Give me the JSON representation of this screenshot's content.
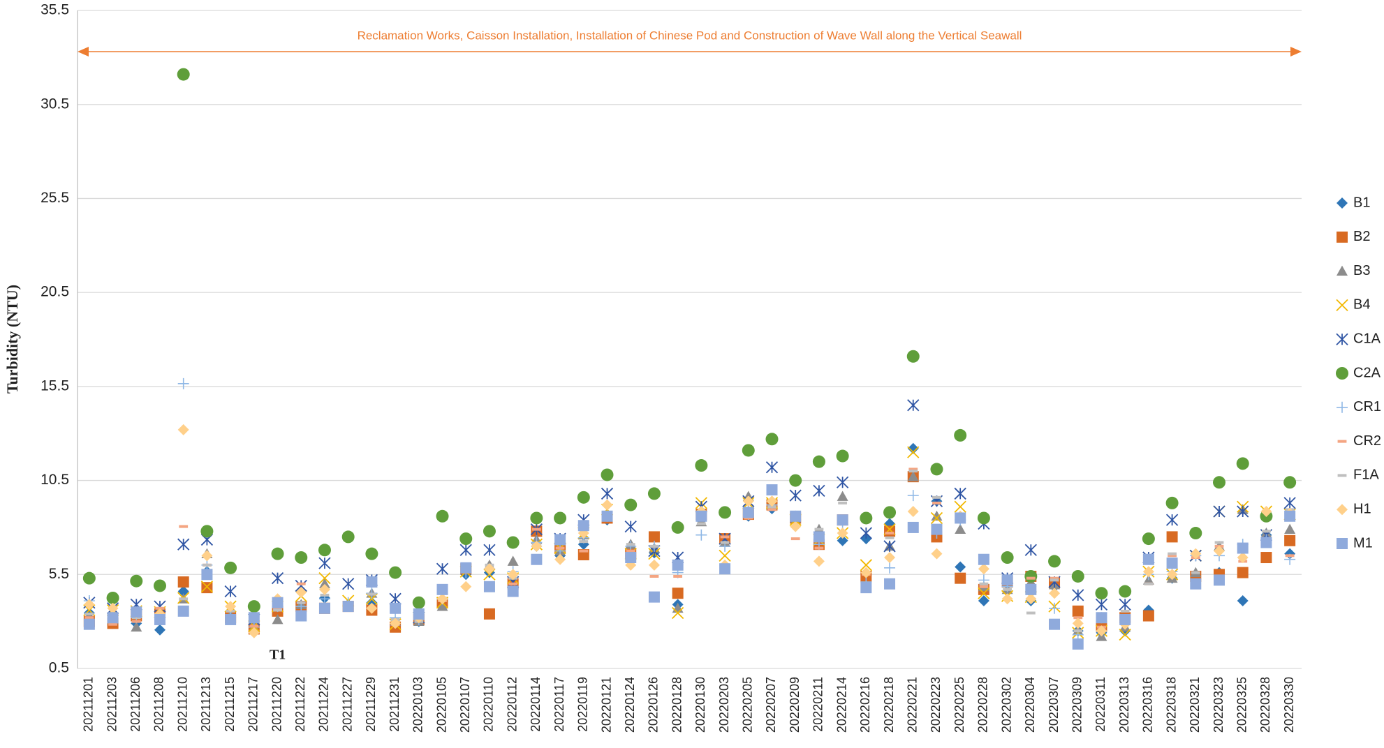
{
  "chart_data": {
    "type": "scatter",
    "annotation": "Reclamation Works, Caisson Installation, Installation of Chinese Pod and Construction of Wave Wall along the Vertical Seawall",
    "annotation_color": "#ed7d31",
    "marker_label": "T1",
    "y_label": "Turbidity (NTU)",
    "categories": [
      "20211201",
      "20211203",
      "20211206",
      "20211208",
      "20211210",
      "20211213",
      "20211215",
      "20211217",
      "20211220",
      "20211222",
      "20211224",
      "20211227",
      "20211229",
      "20211231",
      "20220103",
      "20220105",
      "20220107",
      "20220110",
      "20220112",
      "20220114",
      "20220117",
      "20220119",
      "20220121",
      "20220124",
      "20220126",
      "20220128",
      "20220130",
      "20220203",
      "20220205",
      "20220207",
      "20220209",
      "20220211",
      "20220214",
      "20220216",
      "20220218",
      "20220221",
      "20220223",
      "20220225",
      "20220228",
      "20220302",
      "20220304",
      "20220307",
      "20220309",
      "20220311",
      "20220313",
      "20220316",
      "20220318",
      "20220321",
      "20220323",
      "20220325",
      "20220328",
      "20220330"
    ],
    "ylim": [
      0.5,
      35.5
    ],
    "yticks": [
      0.5,
      5.5,
      10.5,
      15.5,
      20.5,
      25.5,
      30.5,
      35.5
    ],
    "grid": true,
    "legend": "right",
    "series": [
      {
        "name": "B1",
        "color": "#2e75b6",
        "marker": "diamond",
        "values": [
          3.45,
          2.9,
          2.9,
          2.55,
          4.6,
          5.65,
          3.3,
          2.75,
          3.7,
          3.8,
          4.25,
          3.9,
          4.0,
          2.9,
          3.0,
          3.9,
          5.5,
          5.6,
          5.1,
          7.0,
          6.5,
          7.1,
          8.4,
          6.5,
          6.65,
          3.9,
          8.4,
          7.4,
          8.6,
          9.0,
          8.6,
          7.7,
          7.3,
          7.4,
          8.2,
          12.2,
          9.4,
          5.9,
          4.1,
          5.1,
          4.1,
          4.85,
          2.5,
          2.4,
          2.5,
          3.6,
          5.3,
          5.3,
          5.6,
          4.1,
          7.6,
          6.6
        ]
      },
      {
        "name": "B2",
        "color": "#d86a22",
        "marker": "square",
        "values": [
          3.0,
          2.9,
          3.3,
          3.4,
          5.1,
          4.8,
          3.2,
          2.6,
          3.55,
          3.8,
          3.7,
          3.8,
          3.6,
          2.7,
          3.1,
          4.0,
          5.8,
          3.4,
          5.0,
          7.8,
          6.9,
          6.55,
          8.5,
          6.6,
          7.5,
          4.5,
          8.7,
          7.4,
          8.7,
          9.2,
          8.5,
          7.1,
          8.4,
          5.4,
          7.8,
          10.7,
          7.5,
          5.3,
          4.7,
          5.1,
          5.4,
          5.05,
          3.55,
          2.75,
          3.2,
          3.3,
          7.5,
          5.4,
          5.5,
          5.6,
          6.4,
          7.3
        ]
      },
      {
        "name": "B3",
        "color": "#8c8c8c",
        "marker": "triangle",
        "values": [
          3.2,
          3.1,
          2.7,
          3.2,
          4.2,
          6.6,
          3.3,
          2.7,
          3.1,
          3.9,
          5.0,
          3.9,
          4.5,
          3.0,
          3.0,
          3.8,
          5.8,
          6.0,
          6.2,
          7.35,
          6.75,
          7.6,
          8.7,
          7.1,
          6.9,
          3.7,
          8.3,
          7.2,
          9.65,
          9.2,
          8.5,
          7.9,
          9.65,
          4.85,
          7.0,
          10.7,
          8.6,
          7.9,
          4.85,
          4.7,
          5.1,
          4.95,
          2.5,
          2.2,
          2.7,
          5.2,
          5.3,
          5.6,
          7.0,
          8.95,
          7.7,
          7.9
        ]
      },
      {
        "name": "B4",
        "color": "#f2b800",
        "marker": "x",
        "values": [
          3.6,
          3.6,
          3.55,
          3.5,
          4.25,
          4.85,
          3.8,
          2.75,
          3.8,
          4.35,
          5.3,
          4.1,
          4.2,
          2.85,
          3.2,
          4.0,
          5.65,
          5.5,
          5.3,
          7.1,
          6.9,
          7.7,
          8.95,
          6.6,
          6.6,
          3.45,
          9.3,
          6.5,
          9.3,
          9.3,
          8.4,
          7.35,
          7.7,
          6.0,
          7.9,
          12.0,
          8.5,
          9.1,
          4.5,
          4.35,
          4.3,
          3.8,
          2.4,
          2.5,
          2.3,
          5.65,
          5.5,
          6.5,
          8.85,
          9.1,
          8.85,
          8.7
        ]
      },
      {
        "name": "C1A",
        "color": "#2f55a4",
        "marker": "asterisk",
        "values": [
          4.0,
          3.7,
          3.9,
          3.8,
          7.1,
          7.35,
          4.6,
          3.1,
          5.3,
          4.9,
          6.1,
          5.0,
          5.2,
          4.2,
          3.2,
          5.8,
          6.8,
          6.8,
          5.1,
          7.9,
          7.4,
          8.4,
          9.8,
          8.05,
          6.75,
          6.4,
          9.1,
          7.4,
          9.4,
          11.2,
          9.7,
          9.95,
          10.4,
          7.7,
          7.0,
          14.5,
          9.4,
          9.8,
          8.2,
          5.3,
          6.8,
          5.1,
          4.4,
          3.9,
          3.9,
          6.4,
          8.4,
          6.5,
          8.85,
          8.85,
          7.6,
          9.3
        ]
      },
      {
        "name": "C2A",
        "color": "#5f9e3a",
        "marker": "circle",
        "values": [
          5.3,
          4.25,
          5.15,
          4.9,
          32.1,
          7.8,
          5.85,
          3.8,
          6.6,
          6.4,
          6.8,
          7.5,
          6.6,
          5.6,
          4.0,
          8.6,
          7.4,
          7.8,
          7.2,
          8.5,
          8.5,
          9.6,
          10.8,
          9.2,
          9.8,
          8.0,
          11.3,
          8.8,
          12.1,
          12.7,
          10.5,
          11.5,
          11.8,
          8.5,
          8.8,
          17.1,
          11.1,
          12.9,
          8.5,
          6.4,
          5.4,
          6.2,
          5.4,
          4.5,
          4.6,
          7.4,
          9.3,
          7.7,
          10.4,
          11.4,
          8.6,
          10.4
        ]
      },
      {
        "name": "CR1",
        "color": "#8fb8e6",
        "marker": "plus",
        "values": [
          4.1,
          3.4,
          3.2,
          3.4,
          15.65,
          6.0,
          3.2,
          2.7,
          3.8,
          3.8,
          4.2,
          4.0,
          4.5,
          3.2,
          3.1,
          4.2,
          5.6,
          5.8,
          5.65,
          7.2,
          6.75,
          7.45,
          8.6,
          7.0,
          7.0,
          5.6,
          7.6,
          7.0,
          8.7,
          9.2,
          8.4,
          7.1,
          8.15,
          5.1,
          5.85,
          9.7,
          7.7,
          8.4,
          5.2,
          4.85,
          4.6,
          3.7,
          2.3,
          3.2,
          3.0,
          5.5,
          5.65,
          6.5,
          6.5,
          7.1,
          7.35,
          6.3
        ]
      },
      {
        "name": "CR2",
        "color": "#f4a582",
        "marker": "dash",
        "values": [
          3.2,
          2.85,
          3.0,
          3.7,
          8.05,
          6.0,
          3.2,
          2.75,
          3.7,
          5.0,
          3.7,
          4.0,
          3.7,
          2.85,
          3.2,
          4.1,
          5.8,
          5.8,
          5.0,
          7.9,
          6.9,
          6.75,
          8.4,
          6.75,
          5.4,
          5.4,
          8.4,
          7.5,
          8.5,
          8.95,
          7.4,
          6.9,
          8.3,
          5.5,
          7.7,
          11.1,
          9.3,
          8.4,
          4.85,
          5.1,
          5.3,
          5.3,
          3.2,
          2.7,
          3.2,
          5.0,
          6.5,
          6.4,
          7.0,
          6.2,
          7.2,
          6.5
        ]
      },
      {
        "name": "F1A",
        "color": "#bfbfbf",
        "marker": "dash",
        "values": [
          3.4,
          3.2,
          3.2,
          3.2,
          4.2,
          6.0,
          3.55,
          3.2,
          3.6,
          4.0,
          4.4,
          3.9,
          4.45,
          3.1,
          3.0,
          4.2,
          5.9,
          6.0,
          5.3,
          7.1,
          7.2,
          7.25,
          8.4,
          7.1,
          7.0,
          6.2,
          8.2,
          7.2,
          8.95,
          9.1,
          8.6,
          7.9,
          9.3,
          4.6,
          7.45,
          11.0,
          9.6,
          8.6,
          5.0,
          4.7,
          3.45,
          5.2,
          2.5,
          3.2,
          3.55,
          5.0,
          6.6,
          5.6,
          7.2,
          6.9,
          7.8,
          8.95
        ]
      },
      {
        "name": "H1",
        "color": "#ffd08a",
        "marker": "diamond",
        "values": [
          3.9,
          3.7,
          3.45,
          3.4,
          13.2,
          6.5,
          3.8,
          2.4,
          4.2,
          4.55,
          4.7,
          3.8,
          3.7,
          2.9,
          3.2,
          4.2,
          4.85,
          5.8,
          5.5,
          7.0,
          6.3,
          7.7,
          9.2,
          6.0,
          6.0,
          6.0,
          8.85,
          6.0,
          9.4,
          9.4,
          8.05,
          6.2,
          7.7,
          5.6,
          6.4,
          8.85,
          6.6,
          8.6,
          5.8,
          4.2,
          4.2,
          4.5,
          2.9,
          2.5,
          2.85,
          5.65,
          5.5,
          6.6,
          6.75,
          6.4,
          8.85,
          8.75
        ]
      },
      {
        "name": "M1",
        "color": "#8faadc",
        "marker": "square",
        "values": [
          2.85,
          3.2,
          3.5,
          3.1,
          3.55,
          5.5,
          3.1,
          3.2,
          4.0,
          3.3,
          3.7,
          3.8,
          5.1,
          3.7,
          3.4,
          4.7,
          5.85,
          4.85,
          4.6,
          6.3,
          7.35,
          8.1,
          8.6,
          6.4,
          4.3,
          6.0,
          8.6,
          5.8,
          8.8,
          10.0,
          8.6,
          7.5,
          8.4,
          4.8,
          5.0,
          8.0,
          7.9,
          8.5,
          6.3,
          5.2,
          4.7,
          2.85,
          1.8,
          3.2,
          3.1,
          6.3,
          6.1,
          5.0,
          5.2,
          6.9,
          7.2,
          8.6
        ]
      }
    ]
  }
}
